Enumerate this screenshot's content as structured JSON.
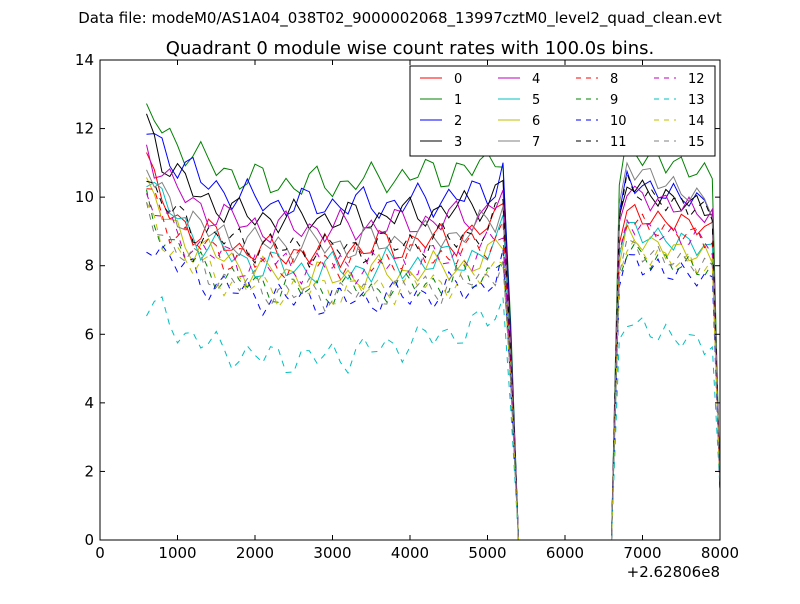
{
  "chart_data": {
    "type": "line",
    "suptitle": "Data file: modeM0/AS1A04_038T02_9000002068_13997cztM0_level2_quad_clean.evt",
    "title": "Quadrant 0 module wise count rates with 100.0s bins.",
    "xlabel": "",
    "ylabel": "",
    "x_offset_label": "+2.62806e8",
    "xlim": [
      0,
      8000
    ],
    "ylim": [
      0,
      14
    ],
    "xticks": [
      "0",
      "1000",
      "2000",
      "3000",
      "4000",
      "5000",
      "6000",
      "7000",
      "8000"
    ],
    "yticks": [
      "0",
      "2",
      "4",
      "6",
      "8",
      "10",
      "12",
      "14"
    ],
    "grid": false,
    "legend_position": "top-right",
    "x_segment1": [
      600,
      5200,
      100
    ],
    "gap_values": {
      "x": [
        5300,
        5400,
        6600,
        6700
      ],
      "y_scale": [
        0.55,
        0.0,
        0.0,
        0.9
      ]
    },
    "x_segment2": [
      6800,
      7900,
      100
    ],
    "end_value_at_8000": 1.5,
    "series": [
      {
        "name": "0",
        "color": "#ff0000",
        "dash": "solid",
        "seg1": [
          11.3,
          10.3,
          9.8,
          9.6,
          9.4,
          9.2,
          9.0,
          9.0,
          8.9,
          8.8,
          8.7,
          8.6,
          8.5,
          8.5,
          8.5,
          8.4,
          8.4,
          8.4,
          8.4,
          8.4,
          8.4,
          8.4,
          8.4,
          8.4,
          8.4,
          8.4,
          8.5,
          8.5,
          8.5,
          8.5,
          8.6,
          8.6,
          8.6,
          8.6,
          8.7,
          8.7,
          8.7,
          8.7,
          8.8,
          8.8,
          8.8,
          8.9,
          8.9,
          9.0,
          9.1,
          9.3,
          9.8
        ],
        "seg2": [
          9.6,
          9.5,
          9.4,
          9.4,
          9.3,
          9.3,
          9.3,
          9.3,
          9.2,
          9.2,
          9.1,
          9.0
        ]
      },
      {
        "name": "1",
        "color": "#008000",
        "dash": "solid",
        "seg1": [
          12.3,
          12.3,
          12.0,
          11.8,
          11.6,
          11.4,
          11.2,
          11.1,
          11.0,
          10.9,
          10.8,
          10.7,
          10.6,
          10.6,
          10.5,
          10.5,
          10.4,
          10.4,
          10.4,
          10.4,
          10.4,
          10.4,
          10.4,
          10.4,
          10.4,
          10.4,
          10.4,
          10.5,
          10.5,
          10.5,
          10.5,
          10.6,
          10.6,
          10.6,
          10.6,
          10.7,
          10.7,
          10.7,
          10.7,
          10.7,
          10.8,
          10.8,
          10.8,
          10.9,
          10.9,
          11.1,
          11.4
        ],
        "seg2": [
          11.5,
          11.3,
          11.2,
          11.1,
          11.1,
          11.0,
          11.0,
          10.9,
          10.8,
          10.8,
          10.7,
          10.6
        ]
      },
      {
        "name": "2",
        "color": "#0000ff",
        "dash": "solid",
        "seg1": [
          12.0,
          11.8,
          11.5,
          11.2,
          11.0,
          10.8,
          10.7,
          10.5,
          10.4,
          10.3,
          10.2,
          10.1,
          10.0,
          10.0,
          9.9,
          9.9,
          9.8,
          9.8,
          9.8,
          9.8,
          9.8,
          9.8,
          9.8,
          9.8,
          9.8,
          9.8,
          9.8,
          9.8,
          9.8,
          9.8,
          9.8,
          9.8,
          9.8,
          9.8,
          9.9,
          9.9,
          9.9,
          9.9,
          10.0,
          10.0,
          10.0,
          10.0,
          10.1,
          10.1,
          10.2,
          10.4,
          10.8
        ],
        "seg2": [
          10.6,
          10.4,
          10.3,
          10.2,
          10.2,
          10.1,
          10.1,
          10.0,
          10.0,
          9.9,
          9.8,
          9.7
        ]
      },
      {
        "name": "3",
        "color": "#000000",
        "dash": "solid",
        "seg1": [
          12.2,
          11.7,
          11.2,
          10.9,
          10.6,
          10.4,
          10.2,
          10.0,
          9.9,
          9.8,
          9.7,
          9.6,
          9.5,
          9.5,
          9.4,
          9.4,
          9.4,
          9.4,
          9.4,
          9.4,
          9.4,
          9.4,
          9.4,
          9.4,
          9.4,
          9.4,
          9.4,
          9.4,
          9.4,
          9.4,
          9.4,
          9.5,
          9.5,
          9.5,
          9.5,
          9.5,
          9.6,
          9.6,
          9.6,
          9.6,
          9.7,
          9.7,
          9.7,
          9.8,
          9.9,
          10.1,
          10.5
        ],
        "seg2": [
          10.5,
          10.3,
          10.2,
          10.1,
          10.0,
          10.0,
          9.9,
          9.9,
          9.8,
          9.8,
          9.7,
          9.6
        ]
      },
      {
        "name": "4",
        "color": "#bf00bf",
        "dash": "solid",
        "seg1": [
          11.6,
          11.1,
          10.7,
          10.4,
          10.2,
          10.0,
          9.8,
          9.7,
          9.6,
          9.5,
          9.4,
          9.3,
          9.3,
          9.2,
          9.2,
          9.1,
          9.1,
          9.1,
          9.1,
          9.1,
          9.1,
          9.1,
          9.1,
          9.1,
          9.1,
          9.1,
          9.1,
          9.1,
          9.1,
          9.2,
          9.2,
          9.2,
          9.2,
          9.2,
          9.3,
          9.3,
          9.3,
          9.3,
          9.3,
          9.4,
          9.4,
          9.4,
          9.5,
          9.5,
          9.6,
          9.8,
          10.2
        ],
        "seg2": [
          10.3,
          10.1,
          10.0,
          9.9,
          9.9,
          9.8,
          9.8,
          9.7,
          9.7,
          9.6,
          9.5,
          9.4
        ]
      },
      {
        "name": "5",
        "color": "#00bfbf",
        "dash": "solid",
        "seg1": [
          10.8,
          10.3,
          9.9,
          9.6,
          9.4,
          9.1,
          8.9,
          8.7,
          8.6,
          8.5,
          8.4,
          8.3,
          8.2,
          8.1,
          8.1,
          8.0,
          8.0,
          8.0,
          7.9,
          7.9,
          7.9,
          7.9,
          7.9,
          7.9,
          7.9,
          7.9,
          7.9,
          7.9,
          7.9,
          7.9,
          8.0,
          8.0,
          8.0,
          8.0,
          8.0,
          8.1,
          8.1,
          8.1,
          8.1,
          8.2,
          8.2,
          8.2,
          8.3,
          8.3,
          8.4,
          8.6,
          9.0
        ],
        "seg2": [
          9.2,
          9.0,
          8.9,
          8.9,
          8.8,
          8.8,
          8.7,
          8.7,
          8.7,
          8.6,
          8.5,
          8.4
        ]
      },
      {
        "name": "6",
        "color": "#bfbf00",
        "dash": "solid",
        "seg1": [
          10.3,
          9.9,
          9.5,
          9.2,
          9.0,
          8.8,
          8.6,
          8.5,
          8.4,
          8.3,
          8.2,
          8.1,
          8.0,
          7.9,
          7.9,
          7.8,
          7.8,
          7.8,
          7.8,
          7.7,
          7.7,
          7.7,
          7.7,
          7.7,
          7.7,
          7.7,
          7.7,
          7.7,
          7.7,
          7.8,
          7.8,
          7.8,
          7.8,
          7.8,
          7.8,
          7.9,
          7.9,
          7.9,
          7.9,
          8.0,
          8.0,
          8.0,
          8.0,
          8.1,
          8.2,
          8.4,
          8.8
        ],
        "seg2": [
          8.9,
          8.8,
          8.7,
          8.6,
          8.6,
          8.5,
          8.5,
          8.4,
          8.4,
          8.3,
          8.3,
          8.2
        ]
      },
      {
        "name": "7",
        "color": "#808080",
        "dash": "solid",
        "seg1": [
          10.8,
          10.4,
          10.1,
          9.8,
          9.6,
          9.4,
          9.3,
          9.1,
          9.0,
          8.9,
          8.9,
          8.8,
          8.8,
          8.7,
          8.7,
          8.7,
          8.6,
          8.6,
          8.6,
          8.6,
          8.6,
          8.6,
          8.6,
          8.6,
          8.6,
          8.6,
          8.6,
          8.6,
          8.7,
          8.7,
          8.7,
          8.7,
          8.7,
          8.8,
          8.8,
          8.8,
          8.8,
          8.9,
          8.9,
          8.9,
          8.9,
          9.0,
          9.0,
          9.1,
          9.2,
          9.4,
          9.9
        ],
        "seg2": [
          10.9,
          10.8,
          10.7,
          10.6,
          10.5,
          10.4,
          10.3,
          10.2,
          10.1,
          10.0,
          9.9,
          9.7
        ]
      },
      {
        "name": "8",
        "color": "#ff0000",
        "dash": "dashed",
        "seg1": [
          10.2,
          9.8,
          9.5,
          9.2,
          9.0,
          8.8,
          8.7,
          8.6,
          8.5,
          8.4,
          8.3,
          8.3,
          8.2,
          8.2,
          8.1,
          8.1,
          8.1,
          8.1,
          8.1,
          8.1,
          8.1,
          8.1,
          8.1,
          8.1,
          8.1,
          8.1,
          8.1,
          8.1,
          8.1,
          8.1,
          8.1,
          8.2,
          8.2,
          8.2,
          8.2,
          8.2,
          8.3,
          8.3,
          8.3,
          8.3,
          8.4,
          8.4,
          8.4,
          8.5,
          8.6,
          8.8,
          9.2
        ],
        "seg2": [
          9.4,
          9.3,
          9.2,
          9.1,
          9.1,
          9.0,
          9.0,
          9.0,
          8.9,
          8.9,
          8.8,
          8.7
        ]
      },
      {
        "name": "9",
        "color": "#008000",
        "dash": "dashed",
        "seg1": [
          9.8,
          9.4,
          9.0,
          8.7,
          8.5,
          8.3,
          8.1,
          8.0,
          7.9,
          7.8,
          7.7,
          7.6,
          7.5,
          7.5,
          7.4,
          7.4,
          7.4,
          7.3,
          7.3,
          7.3,
          7.3,
          7.3,
          7.3,
          7.3,
          7.3,
          7.3,
          7.3,
          7.3,
          7.3,
          7.3,
          7.3,
          7.4,
          7.4,
          7.4,
          7.4,
          7.4,
          7.5,
          7.5,
          7.5,
          7.5,
          7.6,
          7.6,
          7.6,
          7.7,
          7.8,
          8.0,
          8.4
        ],
        "seg2": [
          8.5,
          8.4,
          8.3,
          8.2,
          8.2,
          8.1,
          8.1,
          8.0,
          8.0,
          7.9,
          7.9,
          7.8
        ]
      },
      {
        "name": "10",
        "color": "#0000ff",
        "dash": "dashed",
        "seg1": [
          8.8,
          8.6,
          8.4,
          8.2,
          8.0,
          7.9,
          7.8,
          7.6,
          7.5,
          7.4,
          7.4,
          7.3,
          7.2,
          7.2,
          7.1,
          7.1,
          7.1,
          7.1,
          7.0,
          7.0,
          7.0,
          7.0,
          7.0,
          7.0,
          7.0,
          7.0,
          7.0,
          7.0,
          7.0,
          7.0,
          7.1,
          7.1,
          7.1,
          7.1,
          7.1,
          7.2,
          7.2,
          7.2,
          7.2,
          7.3,
          7.3,
          7.3,
          7.4,
          7.4,
          7.5,
          7.7,
          8.1
        ],
        "seg2": [
          8.2,
          8.1,
          8.0,
          7.9,
          7.9,
          7.8,
          7.8,
          7.8,
          7.7,
          7.7,
          7.6,
          7.5
        ]
      },
      {
        "name": "11",
        "color": "#000000",
        "dash": "dashed",
        "seg1": [
          10.6,
          10.2,
          9.9,
          9.6,
          9.4,
          9.3,
          9.1,
          9.0,
          8.9,
          8.8,
          8.8,
          8.7,
          8.7,
          8.6,
          8.6,
          8.6,
          8.6,
          8.5,
          8.5,
          8.5,
          8.5,
          8.5,
          8.5,
          8.5,
          8.5,
          8.5,
          8.5,
          8.5,
          8.5,
          8.6,
          8.6,
          8.6,
          8.6,
          8.6,
          8.7,
          8.7,
          8.7,
          8.7,
          8.8,
          8.8,
          8.8,
          8.9,
          8.9,
          9.0,
          9.1,
          9.3,
          9.7
        ],
        "seg2": [
          10.4,
          10.2,
          10.1,
          10.0,
          9.9,
          9.9,
          9.8,
          9.8,
          9.7,
          9.7,
          9.6,
          9.5
        ]
      },
      {
        "name": "12",
        "color": "#bf00bf",
        "dash": "dashed",
        "seg1": [
          10.0,
          9.7,
          9.4,
          9.1,
          8.9,
          8.7,
          8.6,
          8.5,
          8.4,
          8.3,
          8.2,
          8.2,
          8.1,
          8.1,
          8.1,
          8.0,
          8.0,
          8.0,
          8.0,
          8.0,
          8.0,
          8.0,
          8.0,
          8.0,
          8.0,
          8.0,
          8.0,
          8.0,
          8.0,
          8.0,
          8.0,
          8.1,
          8.1,
          8.1,
          8.1,
          8.1,
          8.2,
          8.2,
          8.2,
          8.2,
          8.3,
          8.3,
          8.3,
          8.4,
          8.5,
          8.7,
          9.1
        ],
        "seg2": [
          9.3,
          9.2,
          9.1,
          9.0,
          9.0,
          8.9,
          8.9,
          8.8,
          8.8,
          8.8,
          8.7,
          8.6
        ]
      },
      {
        "name": "13",
        "color": "#00bfbf",
        "dash": "dashed",
        "seg1": [
          6.8,
          6.7,
          6.6,
          6.4,
          6.2,
          6.0,
          5.9,
          5.8,
          5.7,
          5.6,
          5.5,
          5.5,
          5.4,
          5.4,
          5.4,
          5.3,
          5.3,
          5.3,
          5.3,
          5.3,
          5.3,
          5.3,
          5.3,
          5.3,
          5.4,
          5.4,
          5.4,
          5.5,
          5.5,
          5.5,
          5.6,
          5.6,
          5.7,
          5.7,
          5.8,
          5.8,
          5.9,
          5.9,
          6.0,
          6.0,
          6.1,
          6.1,
          6.2,
          6.3,
          6.4,
          6.6,
          6.9
        ],
        "seg2": [
          6.5,
          6.3,
          6.2,
          6.1,
          6.0,
          6.0,
          5.9,
          5.9,
          5.8,
          5.8,
          5.7,
          5.6
        ]
      },
      {
        "name": "14",
        "color": "#bfbf00",
        "dash": "dashed",
        "seg1": [
          9.4,
          9.1,
          8.8,
          8.6,
          8.4,
          8.2,
          8.0,
          7.9,
          7.8,
          7.7,
          7.6,
          7.5,
          7.5,
          7.4,
          7.4,
          7.3,
          7.3,
          7.3,
          7.3,
          7.3,
          7.3,
          7.3,
          7.3,
          7.3,
          7.3,
          7.3,
          7.3,
          7.3,
          7.3,
          7.3,
          7.3,
          7.4,
          7.4,
          7.4,
          7.4,
          7.4,
          7.5,
          7.5,
          7.5,
          7.5,
          7.6,
          7.6,
          7.6,
          7.7,
          7.8,
          8.0,
          8.4
        ],
        "seg2": [
          8.6,
          8.5,
          8.4,
          8.3,
          8.3,
          8.2,
          8.2,
          8.1,
          8.1,
          8.0,
          8.0,
          7.9
        ]
      },
      {
        "name": "15",
        "color": "#808080",
        "dash": "dashed",
        "seg1": [
          9.7,
          9.3,
          9.0,
          8.7,
          8.5,
          8.3,
          8.1,
          8.0,
          7.8,
          7.7,
          7.6,
          7.6,
          7.5,
          7.4,
          7.4,
          7.3,
          7.3,
          7.3,
          7.2,
          7.2,
          7.2,
          7.2,
          7.2,
          7.2,
          7.2,
          7.2,
          7.2,
          7.2,
          7.2,
          7.2,
          7.3,
          7.3,
          7.3,
          7.3,
          7.3,
          7.4,
          7.4,
          7.4,
          7.4,
          7.5,
          7.5,
          7.5,
          7.6,
          7.6,
          7.7,
          7.9,
          8.3
        ],
        "seg2": [
          8.6,
          8.5,
          8.4,
          8.3,
          8.3,
          8.2,
          8.2,
          8.1,
          8.1,
          8.0,
          8.0,
          7.9
        ]
      }
    ]
  }
}
